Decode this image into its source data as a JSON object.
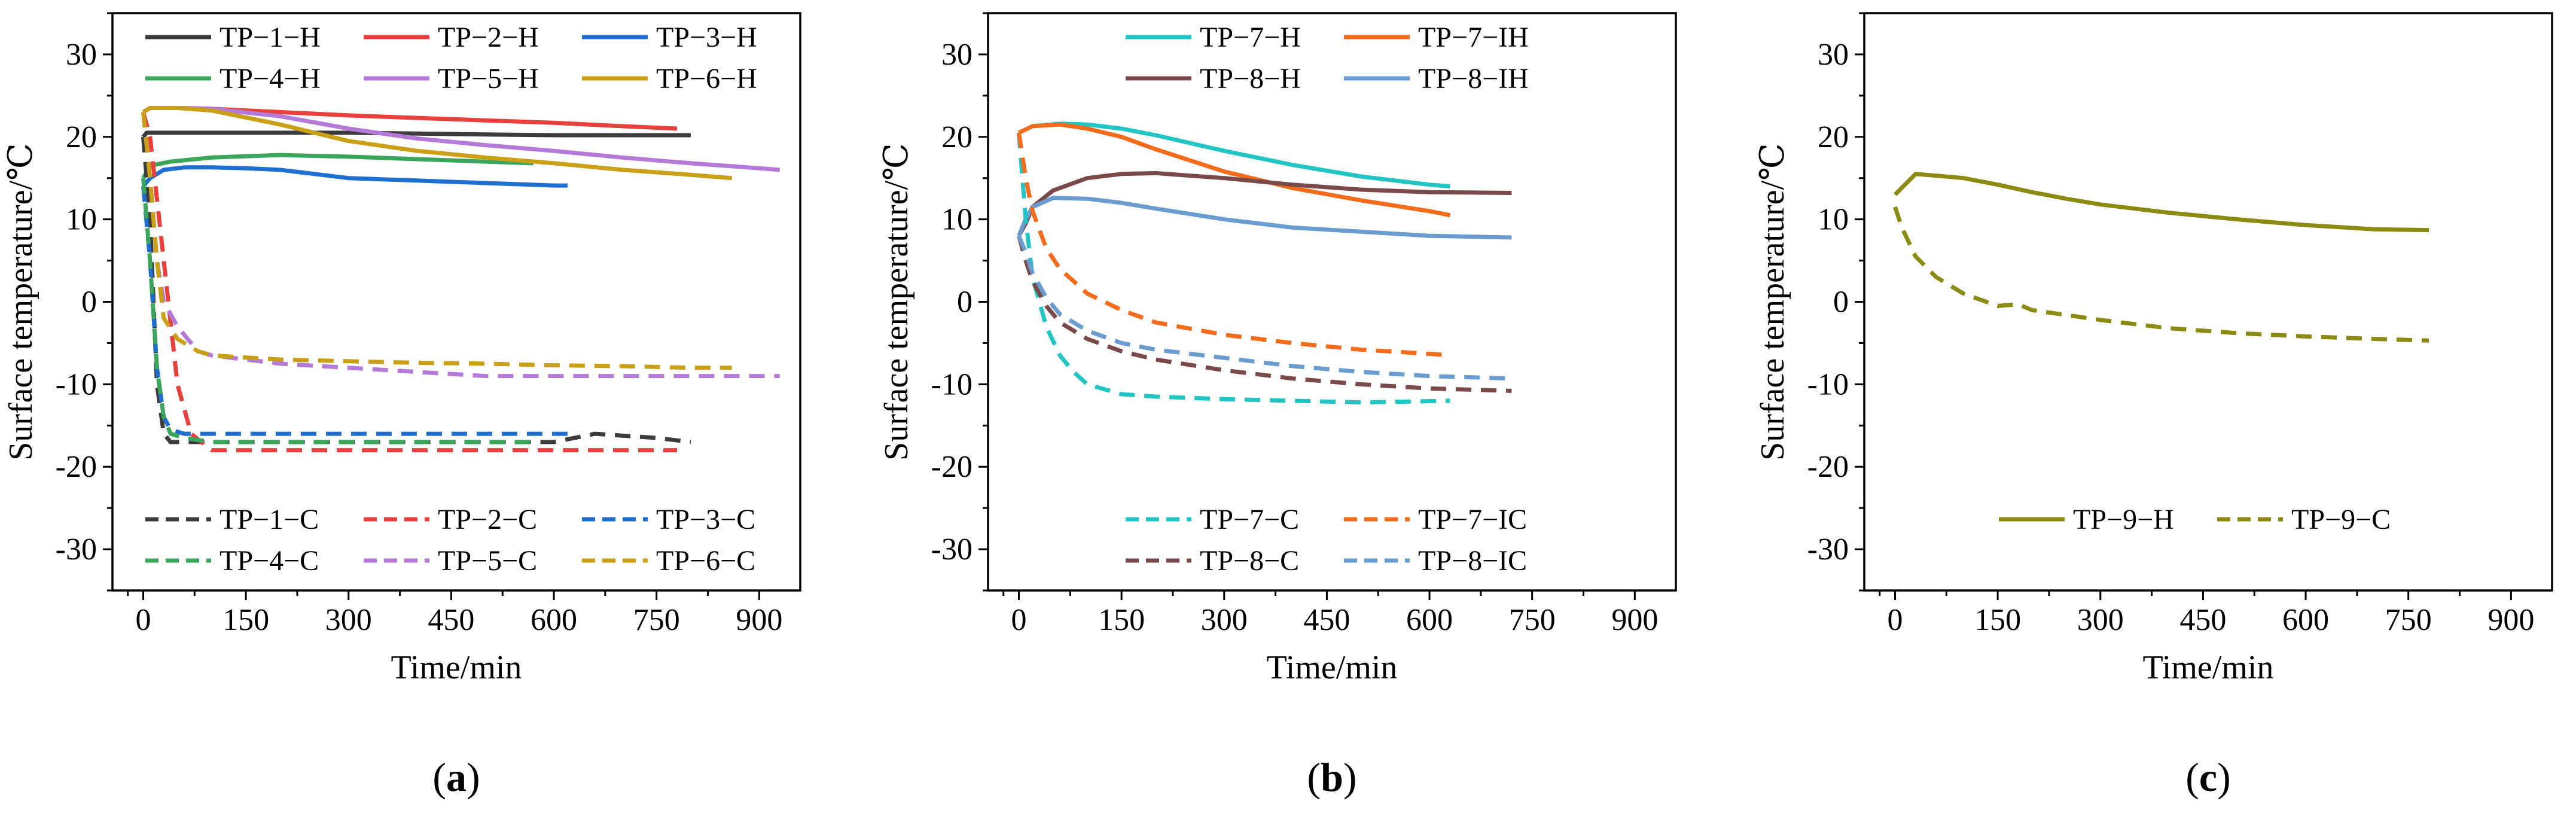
{
  "figure": {
    "panels": [
      "a",
      "b",
      "c"
    ]
  },
  "chart_data": [
    {
      "type": "line",
      "panel_label": "(a)",
      "panel_letter": "a",
      "xlabel": "Time/min",
      "ylabel": "Surface temperature/℃",
      "xlim": [
        -45,
        960
      ],
      "ylim": [
        -35,
        35
      ],
      "xticks": [
        0,
        150,
        300,
        450,
        600,
        750,
        900
      ],
      "yticks": [
        30,
        20,
        10,
        0,
        -10,
        -20,
        -30
      ],
      "legend_top": {
        "position": "top",
        "columns": 3,
        "entries": [
          "TP−1−H",
          "TP−2−H",
          "TP−3−H",
          "TP−4−H",
          "TP−5−H",
          "TP−6−H"
        ]
      },
      "legend_bottom": {
        "position": "bottom",
        "columns": 3,
        "entries": [
          "TP−1−C",
          "TP−2−C",
          "TP−3−C",
          "TP−4−C",
          "TP−5−C",
          "TP−6−C"
        ]
      },
      "series": [
        {
          "name": "TP−1−H",
          "color": "#3c3c3c",
          "dash": "solid",
          "x": [
            0,
            5,
            30,
            60,
            100,
            200,
            300,
            400,
            500,
            600,
            700,
            800
          ],
          "y": [
            20,
            20.5,
            20.5,
            20.5,
            20.5,
            20.5,
            20.5,
            20.4,
            20.3,
            20.2,
            20.2,
            20.2
          ]
        },
        {
          "name": "TP−2−H",
          "color": "#e8403c",
          "dash": "solid",
          "x": [
            0,
            10,
            50,
            100,
            200,
            300,
            400,
            500,
            600,
            700,
            780
          ],
          "y": [
            23,
            23.5,
            23.5,
            23.4,
            23.0,
            22.6,
            22.3,
            22.0,
            21.7,
            21.3,
            21.0
          ]
        },
        {
          "name": "TP−3−H",
          "color": "#1f6fd0",
          "dash": "solid",
          "x": [
            0,
            10,
            30,
            60,
            100,
            150,
            200,
            250,
            300,
            400,
            500,
            600,
            620
          ],
          "y": [
            14,
            15,
            16,
            16.3,
            16.3,
            16.2,
            16.0,
            15.5,
            15.0,
            14.7,
            14.4,
            14.1,
            14.1
          ]
        },
        {
          "name": "TP−4−H",
          "color": "#3ba55c",
          "dash": "solid",
          "x": [
            0,
            10,
            40,
            100,
            200,
            300,
            400,
            500,
            570
          ],
          "y": [
            15,
            16.5,
            17.0,
            17.5,
            17.8,
            17.6,
            17.3,
            17.0,
            16.8
          ]
        },
        {
          "name": "TP−5−H",
          "color": "#b57ad8",
          "dash": "solid",
          "x": [
            0,
            10,
            60,
            100,
            200,
            300,
            400,
            500,
            600,
            700,
            800,
            900,
            930
          ],
          "y": [
            23,
            23.5,
            23.5,
            23.4,
            22.5,
            21.0,
            19.8,
            19.0,
            18.3,
            17.5,
            16.8,
            16.2,
            16.0
          ]
        },
        {
          "name": "TP−6−H",
          "color": "#c9a017",
          "dash": "solid",
          "x": [
            0,
            10,
            50,
            100,
            200,
            300,
            400,
            500,
            600,
            700,
            800,
            860
          ],
          "y": [
            23,
            23.5,
            23.5,
            23.2,
            21.5,
            19.5,
            18.3,
            17.5,
            16.8,
            16.0,
            15.4,
            15.0
          ]
        },
        {
          "name": "TP−1−C",
          "color": "#3c3c3c",
          "dash": "dashed",
          "x": [
            0,
            10,
            20,
            30,
            40,
            60,
            100,
            200,
            300,
            400,
            500,
            600,
            660,
            750,
            800
          ],
          "y": [
            20,
            10,
            -10,
            -16,
            -17,
            -17,
            -17,
            -17,
            -17,
            -17,
            -17,
            -17,
            -16,
            -16.5,
            -17
          ]
        },
        {
          "name": "TP−2−C",
          "color": "#e8403c",
          "dash": "dashed",
          "x": [
            0,
            10,
            30,
            50,
            70,
            100,
            200,
            300,
            400,
            500,
            600,
            700,
            780
          ],
          "y": [
            23,
            20,
            5,
            -10,
            -16,
            -18,
            -18,
            -18,
            -18,
            -18,
            -18,
            -18,
            -18
          ]
        },
        {
          "name": "TP−3−C",
          "color": "#1f6fd0",
          "dash": "dashed",
          "x": [
            0,
            10,
            20,
            30,
            40,
            60,
            100,
            200,
            300,
            400,
            500,
            600,
            620
          ],
          "y": [
            14,
            5,
            -8,
            -14,
            -15.5,
            -16,
            -16,
            -16,
            -16,
            -16,
            -16,
            -16,
            -16
          ]
        },
        {
          "name": "TP−4−C",
          "color": "#3ba55c",
          "dash": "dashed",
          "x": [
            0,
            10,
            20,
            30,
            40,
            60,
            100,
            200,
            300,
            400,
            500,
            570
          ],
          "y": [
            15,
            5,
            -8,
            -14,
            -16,
            -16.5,
            -17,
            -17,
            -17,
            -17,
            -17,
            -17
          ]
        },
        {
          "name": "TP−5−C",
          "color": "#b57ad8",
          "dash": "dashed",
          "x": [
            0,
            10,
            20,
            30,
            50,
            80,
            100,
            200,
            300,
            400,
            500,
            600,
            700,
            800,
            930
          ],
          "y": [
            23,
            15,
            5,
            0,
            -3,
            -6,
            -6.5,
            -7.5,
            -8,
            -8.5,
            -9,
            -9,
            -9,
            -9,
            -9
          ]
        },
        {
          "name": "TP−6−C",
          "color": "#c9a017",
          "dash": "dashed",
          "x": [
            0,
            10,
            20,
            30,
            50,
            80,
            100,
            200,
            300,
            400,
            500,
            600,
            700,
            800,
            860
          ],
          "y": [
            23,
            15,
            5,
            -2,
            -4.5,
            -6,
            -6.5,
            -7,
            -7.2,
            -7.4,
            -7.5,
            -7.7,
            -7.8,
            -8,
            -8
          ]
        }
      ]
    },
    {
      "type": "line",
      "panel_label": "(b)",
      "panel_letter": "b",
      "xlabel": "Time/min",
      "ylabel": "Surface temperature/℃",
      "xlim": [
        -45,
        960
      ],
      "ylim": [
        -35,
        35
      ],
      "xticks": [
        0,
        150,
        300,
        450,
        600,
        750,
        900
      ],
      "yticks": [
        30,
        20,
        10,
        0,
        -10,
        -20,
        -30
      ],
      "legend_top": {
        "position": "top",
        "columns": 2,
        "entries": [
          "TP−7−H",
          "TP−7−IH",
          "TP−8−H",
          "TP−8−IH"
        ]
      },
      "legend_bottom": {
        "position": "bottom",
        "columns": 2,
        "entries": [
          "TP−7−C",
          "TP−7−IC",
          "TP−8−C",
          "TP−8−IC"
        ]
      },
      "series": [
        {
          "name": "TP−7−H",
          "color": "#22c4c4",
          "dash": "solid",
          "x": [
            0,
            20,
            60,
            100,
            150,
            200,
            300,
            400,
            500,
            600,
            630
          ],
          "y": [
            20.5,
            21.3,
            21.6,
            21.5,
            21.0,
            20.2,
            18.3,
            16.6,
            15.2,
            14.2,
            14.0
          ]
        },
        {
          "name": "TP−7−IH",
          "color": "#f26c1b",
          "dash": "solid",
          "x": [
            0,
            20,
            60,
            100,
            150,
            200,
            300,
            400,
            500,
            600,
            630
          ],
          "y": [
            20.5,
            21.3,
            21.5,
            21.0,
            20.0,
            18.5,
            15.8,
            13.8,
            12.3,
            11.0,
            10.5
          ]
        },
        {
          "name": "TP−8−H",
          "color": "#7a4a4a",
          "dash": "solid",
          "x": [
            0,
            10,
            20,
            50,
            100,
            150,
            200,
            250,
            300,
            400,
            500,
            600,
            720
          ],
          "y": [
            8,
            9.5,
            11.5,
            13.5,
            15.0,
            15.5,
            15.6,
            15.3,
            15.0,
            14.2,
            13.6,
            13.3,
            13.2
          ]
        },
        {
          "name": "TP−8−IH",
          "color": "#6a9ccf",
          "dash": "solid",
          "x": [
            0,
            10,
            20,
            50,
            100,
            150,
            200,
            300,
            400,
            500,
            600,
            720
          ],
          "y": [
            8,
            10,
            11.5,
            12.6,
            12.5,
            12.0,
            11.3,
            10.0,
            9.0,
            8.5,
            8.0,
            7.8
          ]
        },
        {
          "name": "TP−7−C",
          "color": "#22c4c4",
          "dash": "dashed",
          "x": [
            0,
            10,
            20,
            40,
            60,
            80,
            100,
            150,
            200,
            300,
            400,
            500,
            630
          ],
          "y": [
            20.5,
            10,
            3,
            -3,
            -6.5,
            -8.5,
            -10,
            -11.2,
            -11.5,
            -11.8,
            -12.0,
            -12.2,
            -12.0
          ]
        },
        {
          "name": "TP−7−IC",
          "color": "#f26c1b",
          "dash": "dashed",
          "x": [
            0,
            10,
            20,
            40,
            60,
            100,
            150,
            200,
            300,
            400,
            500,
            600,
            630
          ],
          "y": [
            20.5,
            15,
            11,
            6.5,
            4,
            1,
            -1,
            -2.5,
            -4.0,
            -5.0,
            -5.8,
            -6.3,
            -6.5
          ]
        },
        {
          "name": "TP−8−C",
          "color": "#7a4a4a",
          "dash": "dashed",
          "x": [
            0,
            10,
            20,
            40,
            60,
            100,
            150,
            200,
            300,
            400,
            500,
            600,
            720
          ],
          "y": [
            8,
            5,
            2.5,
            -0.5,
            -2.5,
            -4.5,
            -6.0,
            -7.0,
            -8.3,
            -9.3,
            -10.0,
            -10.5,
            -10.8
          ]
        },
        {
          "name": "TP−8−IC",
          "color": "#6a9ccf",
          "dash": "dashed",
          "x": [
            0,
            10,
            20,
            40,
            60,
            100,
            150,
            200,
            300,
            400,
            500,
            600,
            720
          ],
          "y": [
            8,
            6,
            3.5,
            0.5,
            -1.5,
            -3.5,
            -5.0,
            -5.8,
            -6.8,
            -7.8,
            -8.5,
            -9.0,
            -9.3
          ]
        }
      ]
    },
    {
      "type": "line",
      "panel_label": "(c)",
      "panel_letter": "c",
      "xlabel": "Time/min",
      "ylabel": "Surface temperature/℃",
      "xlim": [
        -45,
        960
      ],
      "ylim": [
        -35,
        35
      ],
      "xticks": [
        0,
        150,
        300,
        450,
        600,
        750,
        900
      ],
      "yticks": [
        30,
        20,
        10,
        0,
        -10,
        -20,
        -30
      ],
      "legend_top": {
        "position": "none",
        "columns": 1,
        "entries": []
      },
      "legend_bottom": {
        "position": "bottom",
        "columns": 2,
        "entries": [
          "TP−9−H",
          "TP−9−C"
        ]
      },
      "series": [
        {
          "name": "TP−9−H",
          "color": "#8b8b14",
          "dash": "solid",
          "x": [
            0,
            30,
            60,
            100,
            150,
            200,
            250,
            300,
            400,
            500,
            600,
            700,
            780
          ],
          "y": [
            13,
            15.5,
            15.3,
            15.0,
            14.2,
            13.3,
            12.5,
            11.8,
            10.8,
            10.0,
            9.3,
            8.8,
            8.7
          ]
        },
        {
          "name": "TP−9−C",
          "color": "#8b8b14",
          "dash": "dashed",
          "x": [
            0,
            10,
            30,
            60,
            100,
            150,
            180,
            200,
            300,
            400,
            500,
            600,
            700,
            780
          ],
          "y": [
            11.5,
            9,
            5.5,
            3,
            1.0,
            -0.5,
            -0.3,
            -1.0,
            -2.2,
            -3.2,
            -3.8,
            -4.2,
            -4.5,
            -4.7
          ]
        }
      ]
    }
  ]
}
